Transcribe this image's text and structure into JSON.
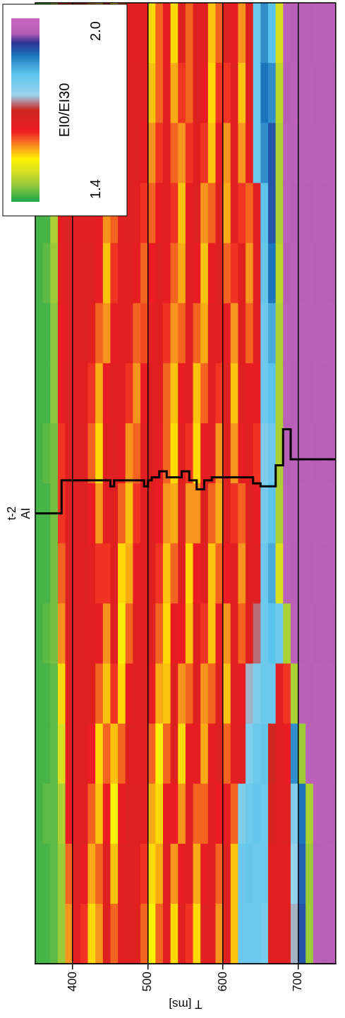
{
  "chart_data": {
    "type": "heatmap",
    "y_label": "T [ms]",
    "categories": [
      null,
      null,
      null,
      null,
      null,
      null,
      null,
      null,
      null,
      null,
      null,
      null,
      null,
      null,
      null,
      null
    ],
    "y": [
      355,
      365,
      375,
      385,
      395,
      405,
      415,
      425,
      435,
      445,
      455,
      465,
      475,
      485,
      495,
      505,
      515,
      525,
      535,
      545,
      555,
      565,
      575,
      585,
      595,
      605,
      615,
      625,
      635,
      645,
      655,
      665,
      675,
      685,
      695,
      705,
      715,
      725,
      735,
      745
    ],
    "ylim": [
      750,
      350
    ],
    "yticks": [
      400,
      500,
      600,
      700
    ],
    "grid": true,
    "tick_labels": "y",
    "cells": [
      [
        1.42,
        1.42,
        1.42,
        1.42,
        1.42,
        1.42,
        1.42,
        1.42,
        1.42,
        1.42,
        1.42,
        1.42,
        1.42,
        1.42,
        1.42,
        1.42
      ],
      [
        1.42,
        1.42,
        1.43,
        1.42,
        1.42,
        1.43,
        1.42,
        1.42,
        1.43,
        1.42,
        1.42,
        1.43,
        1.42,
        1.43,
        1.43,
        1.43
      ],
      [
        1.43,
        1.43,
        1.43,
        1.43,
        1.43,
        1.44,
        1.44,
        1.44,
        1.44,
        1.45,
        1.45,
        1.46,
        1.47,
        1.47,
        1.48,
        1.48
      ],
      [
        1.46,
        1.46,
        1.47,
        1.5,
        1.55,
        1.58,
        1.6,
        1.62,
        1.62,
        1.64,
        1.64,
        1.65,
        1.65,
        1.64,
        1.64,
        1.63
      ],
      [
        1.58,
        1.6,
        1.63,
        1.65,
        1.66,
        1.66,
        1.67,
        1.66,
        1.66,
        1.67,
        1.66,
        1.66,
        1.67,
        1.66,
        1.66,
        1.66
      ],
      [
        1.66,
        1.67,
        1.66,
        1.67,
        1.66,
        1.67,
        1.66,
        1.66,
        1.67,
        1.66,
        1.67,
        1.66,
        1.66,
        1.67,
        1.66,
        1.67
      ],
      [
        1.62,
        1.64,
        1.66,
        1.66,
        1.67,
        1.66,
        1.66,
        1.67,
        1.66,
        1.66,
        1.66,
        1.67,
        1.66,
        1.66,
        1.65,
        1.64
      ],
      [
        1.55,
        1.57,
        1.6,
        1.63,
        1.66,
        1.66,
        1.65,
        1.63,
        1.6,
        1.62,
        1.65,
        1.66,
        1.66,
        1.64,
        1.6,
        1.58
      ],
      [
        1.58,
        1.6,
        1.56,
        1.55,
        1.6,
        1.64,
        1.62,
        1.58,
        1.55,
        1.57,
        1.6,
        1.63,
        1.64,
        1.6,
        1.56,
        1.55
      ],
      [
        1.66,
        1.66,
        1.63,
        1.6,
        1.56,
        1.58,
        1.62,
        1.65,
        1.66,
        1.64,
        1.58,
        1.56,
        1.58,
        1.62,
        1.64,
        1.65
      ],
      [
        1.6,
        1.56,
        1.54,
        1.56,
        1.62,
        1.66,
        1.66,
        1.66,
        1.66,
        1.66,
        1.64,
        1.62,
        1.6,
        1.57,
        1.55,
        1.54
      ],
      [
        1.66,
        1.66,
        1.64,
        1.6,
        1.55,
        1.53,
        1.55,
        1.6,
        1.64,
        1.66,
        1.66,
        1.66,
        1.66,
        1.64,
        1.62,
        1.6
      ],
      [
        1.67,
        1.67,
        1.66,
        1.66,
        1.64,
        1.6,
        1.57,
        1.56,
        1.58,
        1.62,
        1.66,
        1.66,
        1.67,
        1.67,
        1.66,
        1.66
      ],
      [
        1.66,
        1.66,
        1.67,
        1.66,
        1.66,
        1.66,
        1.64,
        1.62,
        1.6,
        1.58,
        1.6,
        1.64,
        1.66,
        1.66,
        1.67,
        1.66
      ],
      [
        1.6,
        1.62,
        1.65,
        1.66,
        1.67,
        1.66,
        1.66,
        1.66,
        1.65,
        1.63,
        1.61,
        1.6,
        1.62,
        1.64,
        1.65,
        1.66
      ],
      [
        1.54,
        1.55,
        1.57,
        1.6,
        1.64,
        1.66,
        1.66,
        1.66,
        1.66,
        1.66,
        1.65,
        1.63,
        1.6,
        1.58,
        1.56,
        1.55
      ],
      [
        1.6,
        1.57,
        1.55,
        1.54,
        1.57,
        1.6,
        1.62,
        1.63,
        1.64,
        1.66,
        1.66,
        1.66,
        1.64,
        1.62,
        1.6,
        1.6
      ],
      [
        1.66,
        1.66,
        1.64,
        1.6,
        1.56,
        1.55,
        1.56,
        1.58,
        1.6,
        1.6,
        1.62,
        1.64,
        1.66,
        1.66,
        1.65,
        1.64
      ],
      [
        1.55,
        1.58,
        1.63,
        1.66,
        1.66,
        1.64,
        1.6,
        1.57,
        1.55,
        1.56,
        1.58,
        1.6,
        1.62,
        1.6,
        1.57,
        1.55
      ],
      [
        1.66,
        1.64,
        1.58,
        1.55,
        1.58,
        1.63,
        1.66,
        1.66,
        1.66,
        1.64,
        1.6,
        1.57,
        1.56,
        1.58,
        1.62,
        1.66
      ],
      [
        1.62,
        1.66,
        1.66,
        1.64,
        1.6,
        1.56,
        1.55,
        1.58,
        1.62,
        1.66,
        1.66,
        1.66,
        1.64,
        1.62,
        1.6,
        1.6
      ],
      [
        1.55,
        1.57,
        1.6,
        1.64,
        1.66,
        1.66,
        1.63,
        1.58,
        1.55,
        1.56,
        1.6,
        1.64,
        1.66,
        1.66,
        1.66,
        1.66
      ],
      [
        1.66,
        1.64,
        1.6,
        1.57,
        1.58,
        1.62,
        1.66,
        1.66,
        1.64,
        1.6,
        1.57,
        1.56,
        1.58,
        1.62,
        1.64,
        1.66
      ],
      [
        1.66,
        1.66,
        1.66,
        1.64,
        1.6,
        1.56,
        1.56,
        1.6,
        1.65,
        1.66,
        1.66,
        1.64,
        1.6,
        1.56,
        1.55,
        1.56
      ],
      [
        1.58,
        1.6,
        1.63,
        1.66,
        1.66,
        1.64,
        1.6,
        1.57,
        1.58,
        1.62,
        1.66,
        1.66,
        1.66,
        1.64,
        1.62,
        1.6
      ],
      [
        1.66,
        1.66,
        1.64,
        1.6,
        1.56,
        1.58,
        1.63,
        1.66,
        1.66,
        1.66,
        1.64,
        1.6,
        1.57,
        1.58,
        1.62,
        1.66
      ],
      [
        1.56,
        1.56,
        1.6,
        1.65,
        1.66,
        1.66,
        1.66,
        1.62,
        1.58,
        1.56,
        1.58,
        1.62,
        1.66,
        1.66,
        1.66,
        1.64
      ],
      [
        1.8,
        1.8,
        1.78,
        1.66,
        1.64,
        1.6,
        1.58,
        1.6,
        1.64,
        1.66,
        1.66,
        1.66,
        1.62,
        1.58,
        1.56,
        1.58
      ],
      [
        1.8,
        1.81,
        1.8,
        1.78,
        1.74,
        1.66,
        1.66,
        1.66,
        1.66,
        1.64,
        1.6,
        1.58,
        1.6,
        1.64,
        1.66,
        1.66
      ],
      [
        1.8,
        1.8,
        1.81,
        1.8,
        1.78,
        1.72,
        1.66,
        1.64,
        1.62,
        1.64,
        1.66,
        1.66,
        1.66,
        1.8,
        1.8,
        1.8
      ],
      [
        1.79,
        1.8,
        1.8,
        1.81,
        1.8,
        1.8,
        1.8,
        1.79,
        1.78,
        1.8,
        1.8,
        1.81,
        1.82,
        1.86,
        1.88,
        1.86
      ],
      [
        1.66,
        1.66,
        1.68,
        1.7,
        1.8,
        1.82,
        1.84,
        1.82,
        1.8,
        1.82,
        1.84,
        1.88,
        1.9,
        1.9,
        1.86,
        1.82
      ],
      [
        1.66,
        1.66,
        1.66,
        1.66,
        1.65,
        1.8,
        1.5,
        1.47,
        1.47,
        1.47,
        1.47,
        1.48,
        1.47,
        1.47,
        1.48,
        1.5
      ],
      [
        1.66,
        1.65,
        1.66,
        1.64,
        1.62,
        1.47,
        1.97,
        1.97,
        1.96,
        1.97,
        1.97,
        1.96,
        1.97,
        1.97,
        1.96,
        1.97
      ],
      [
        1.74,
        1.76,
        1.78,
        1.86,
        1.47,
        1.97,
        1.96,
        1.97,
        1.97,
        1.96,
        1.97,
        1.97,
        1.96,
        1.97,
        1.97,
        1.96
      ],
      [
        1.9,
        1.89,
        1.88,
        1.46,
        1.97,
        1.96,
        1.97,
        1.97,
        1.96,
        1.97,
        1.97,
        1.96,
        1.97,
        1.97,
        1.96,
        1.97
      ],
      [
        1.46,
        1.46,
        1.47,
        1.97,
        1.96,
        1.97,
        1.96,
        1.97,
        1.97,
        1.96,
        1.97,
        1.97,
        1.96,
        1.97,
        1.97,
        1.96
      ],
      [
        1.97,
        1.96,
        1.97,
        1.97,
        1.97,
        1.96,
        1.97,
        1.97,
        1.96,
        1.97,
        1.97,
        1.96,
        1.97,
        1.97,
        1.96,
        1.97
      ],
      [
        1.96,
        1.97,
        1.97,
        1.96,
        1.97,
        1.97,
        1.96,
        1.97,
        1.97,
        1.96,
        1.97,
        1.97,
        1.96,
        1.97,
        1.97,
        1.96
      ],
      [
        1.97,
        1.97,
        1.96,
        1.97,
        1.97,
        1.96,
        1.97,
        1.97,
        1.96,
        1.97,
        1.97,
        1.96,
        1.97,
        1.97,
        1.96,
        1.97
      ]
    ],
    "colorbar": {
      "label": "EI0/EI30",
      "range": [
        1.4,
        2.0
      ],
      "ticks": [
        1.4,
        {
          "value": 2.0,
          "label": "2.0"
        }
      ]
    },
    "well": {
      "label": "t-2",
      "log_name": "AI",
      "color": "#000000",
      "bins": [
        350,
        385,
        450,
        455,
        495,
        500,
        505,
        515,
        525,
        545,
        555,
        565,
        575,
        585,
        640,
        650,
        670,
        680,
        690,
        750
      ],
      "values": [
        7.0,
        7.55,
        7.45,
        7.55,
        7.45,
        7.55,
        7.6,
        7.7,
        7.6,
        7.7,
        7.55,
        7.4,
        7.55,
        7.6,
        7.5,
        7.45,
        7.8,
        8.4,
        7.9
      ]
    }
  }
}
